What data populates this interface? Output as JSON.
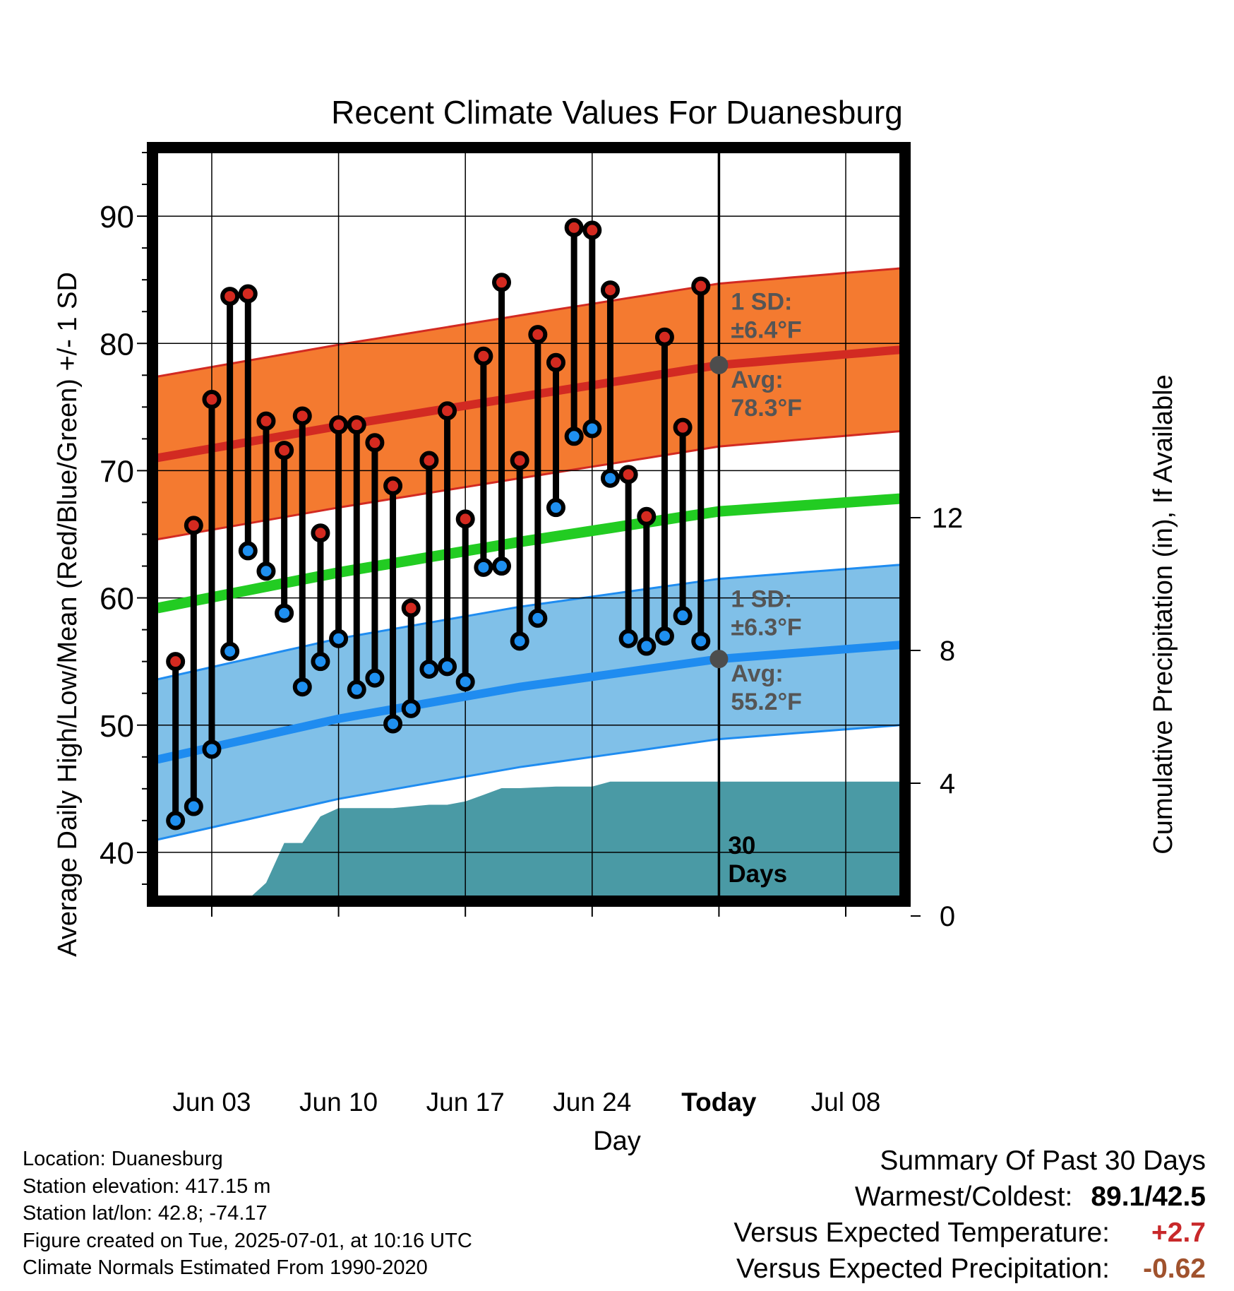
{
  "chart_data": {
    "type": "line",
    "title": "Recent Climate Values For Duanesburg",
    "xlabel": "Day",
    "ylabel": "Average Daily High/Low/Mean (Red/Blue/Green) +/- 1 SD",
    "y2label": "Cumulative Precipitation (in), If Available",
    "ylim": [
      35,
      95
    ],
    "y2lim": [
      0,
      23
    ],
    "yticks": [
      40,
      50,
      60,
      70,
      80,
      90
    ],
    "y2ticks": [
      0,
      4,
      8,
      12
    ],
    "x_start": "2025-05-31",
    "x_end": "2025-07-11",
    "today": "2025-07-01",
    "xticks": [
      {
        "date": "2025-06-03",
        "label": "Jun 03"
      },
      {
        "date": "2025-06-10",
        "label": "Jun 10"
      },
      {
        "date": "2025-06-17",
        "label": "Jun 17"
      },
      {
        "date": "2025-06-24",
        "label": "Jun 24"
      },
      {
        "date": "2025-07-01",
        "label": "Today"
      },
      {
        "date": "2025-07-08",
        "label": "Jul 08"
      }
    ],
    "grid": true,
    "colors": {
      "high_band": "#f47a30",
      "high_line": "#d22a22",
      "low_band": "#80c0e8",
      "low_line": "#1f8cf0",
      "mean_line": "#22cc22",
      "precip": "#4a9aa5",
      "high_marker": "#d42a20",
      "low_marker": "#1f90f0"
    },
    "normal_high": {
      "x": [
        "2025-05-31",
        "2025-06-10",
        "2025-06-20",
        "2025-07-01",
        "2025-07-11"
      ],
      "avg": [
        71.0,
        73.5,
        75.8,
        78.3,
        79.5
      ],
      "sd": 6.4
    },
    "normal_low": {
      "x": [
        "2025-05-31",
        "2025-06-10",
        "2025-06-20",
        "2025-07-01",
        "2025-07-11"
      ],
      "avg": [
        47.3,
        50.5,
        53.0,
        55.2,
        56.3
      ],
      "sd": 6.3
    },
    "normal_mean": {
      "x": [
        "2025-05-31",
        "2025-06-10",
        "2025-06-20",
        "2025-07-01",
        "2025-07-11"
      ],
      "values": [
        59.2,
        62.0,
        64.4,
        66.8,
        67.8
      ]
    },
    "series": [
      {
        "name": "High",
        "x": [
          "2025-06-01",
          "2025-06-02",
          "2025-06-03",
          "2025-06-04",
          "2025-06-05",
          "2025-06-06",
          "2025-06-07",
          "2025-06-08",
          "2025-06-09",
          "2025-06-10",
          "2025-06-11",
          "2025-06-12",
          "2025-06-13",
          "2025-06-14",
          "2025-06-15",
          "2025-06-16",
          "2025-06-17",
          "2025-06-18",
          "2025-06-19",
          "2025-06-20",
          "2025-06-21",
          "2025-06-22",
          "2025-06-23",
          "2025-06-24",
          "2025-06-25",
          "2025-06-26",
          "2025-06-27",
          "2025-06-28",
          "2025-06-29",
          "2025-06-30"
        ],
        "values": [
          55.0,
          65.7,
          75.6,
          83.7,
          83.9,
          73.9,
          71.6,
          74.3,
          65.1,
          73.6,
          73.6,
          72.2,
          68.8,
          59.2,
          70.8,
          74.7,
          66.2,
          79.0,
          84.8,
          70.8,
          80.7,
          78.5,
          89.1,
          88.9,
          84.2,
          69.7,
          66.4,
          80.5,
          73.4,
          84.5
        ]
      },
      {
        "name": "Low",
        "x": [
          "2025-06-01",
          "2025-06-02",
          "2025-06-03",
          "2025-06-04",
          "2025-06-05",
          "2025-06-06",
          "2025-06-07",
          "2025-06-08",
          "2025-06-09",
          "2025-06-10",
          "2025-06-11",
          "2025-06-12",
          "2025-06-13",
          "2025-06-14",
          "2025-06-15",
          "2025-06-16",
          "2025-06-17",
          "2025-06-18",
          "2025-06-19",
          "2025-06-20",
          "2025-06-21",
          "2025-06-22",
          "2025-06-23",
          "2025-06-24",
          "2025-06-25",
          "2025-06-26",
          "2025-06-27",
          "2025-06-28",
          "2025-06-29",
          "2025-06-30"
        ],
        "values": [
          42.5,
          43.6,
          48.1,
          55.8,
          63.7,
          62.1,
          58.8,
          53.0,
          55.0,
          56.8,
          52.8,
          53.7,
          50.1,
          51.3,
          54.4,
          54.6,
          53.4,
          62.4,
          62.5,
          56.6,
          58.4,
          67.1,
          72.7,
          73.3,
          69.4,
          56.8,
          56.2,
          57.0,
          58.6,
          56.6
        ]
      }
    ],
    "precip": {
      "x": [
        "2025-05-31",
        "2025-06-04",
        "2025-06-05",
        "2025-06-06",
        "2025-06-07",
        "2025-06-08",
        "2025-06-09",
        "2025-06-10",
        "2025-06-13",
        "2025-06-15",
        "2025-06-16",
        "2025-06-17",
        "2025-06-18",
        "2025-06-19",
        "2025-06-20",
        "2025-06-22",
        "2025-06-24",
        "2025-06-25",
        "2025-06-26",
        "2025-07-11"
      ],
      "values": [
        0,
        0,
        0.5,
        1.0,
        2.2,
        2.2,
        3.0,
        3.25,
        3.25,
        3.35,
        3.35,
        3.45,
        3.65,
        3.85,
        3.85,
        3.9,
        3.9,
        4.05,
        4.05,
        4.05
      ]
    },
    "annotations": {
      "high_sd_line1": "1 SD:",
      "high_sd_line2": "±6.4°F",
      "high_avg_line1": "Avg:",
      "high_avg_line2": "78.3°F",
      "low_sd_line1": "1 SD:",
      "low_sd_line2": "±6.3°F",
      "low_avg_line1": "Avg:",
      "low_avg_line2": "55.2°F",
      "days_line1": "30",
      "days_line2": "Days"
    }
  },
  "footer": {
    "location": "Location: Duanesburg",
    "elevation": "Station elevation: 417.15 m",
    "latlon": "Station lat/lon: 42.8; -74.17",
    "created": "Figure created on Tue, 2025-07-01, at 10:16 UTC",
    "normals": "Climate Normals Estimated From 1990-2020"
  },
  "summary": {
    "title": "Summary Of Past 30 Days",
    "warmest_label": "Warmest/Coldest:",
    "warmest_value": "89.1/42.5",
    "temp_label": "Versus Expected Temperature:",
    "temp_value": "+2.7",
    "temp_color": "#c8282a",
    "precip_label": "Versus Expected Precipitation:",
    "precip_value": "-0.62",
    "precip_color": "#a0522d"
  }
}
